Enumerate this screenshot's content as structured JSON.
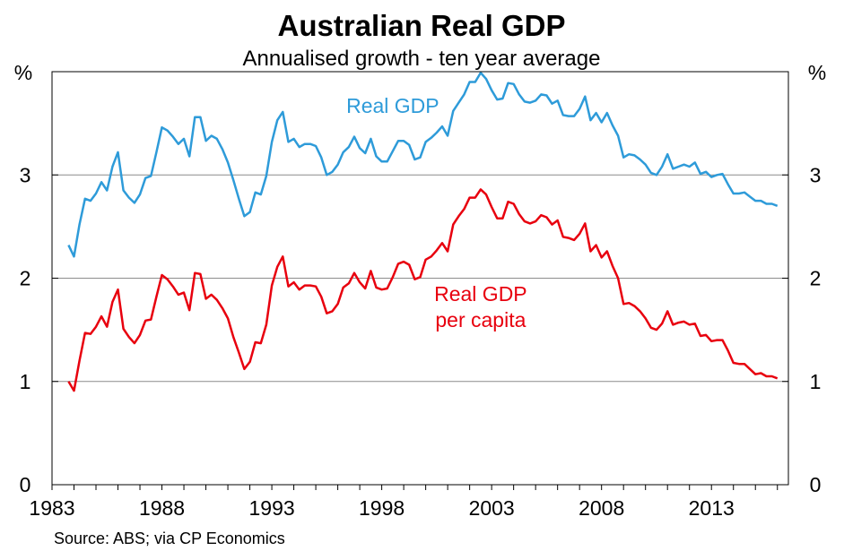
{
  "chart_data": {
    "type": "line",
    "title": "Australian Real GDP",
    "subtitle": "Annualised growth - ten year average",
    "unit_left": "%",
    "unit_right": "%",
    "xlim": [
      1983,
      2016.5
    ],
    "ylim": [
      0,
      4
    ],
    "x_ticks": [
      1983,
      1988,
      1993,
      1998,
      2003,
      2008,
      2013
    ],
    "y_ticks": [
      0,
      1,
      2,
      3
    ],
    "grid": true,
    "source": "Source: ABS; via CP Economics",
    "series": [
      {
        "name": "Real GDP",
        "color": "#2E9BD9",
        "label_lines": [
          "Real GDP"
        ],
        "points": [
          [
            1983.75,
            2.32
          ],
          [
            1984.0,
            2.21
          ],
          [
            1984.25,
            2.52
          ],
          [
            1984.5,
            2.77
          ],
          [
            1984.75,
            2.75
          ],
          [
            1985.0,
            2.82
          ],
          [
            1985.25,
            2.93
          ],
          [
            1985.5,
            2.85
          ],
          [
            1985.75,
            3.08
          ],
          [
            1986.0,
            3.22
          ],
          [
            1986.25,
            2.85
          ],
          [
            1986.5,
            2.78
          ],
          [
            1986.75,
            2.73
          ],
          [
            1987.0,
            2.81
          ],
          [
            1987.25,
            2.97
          ],
          [
            1987.5,
            2.99
          ],
          [
            1987.75,
            3.22
          ],
          [
            1988.0,
            3.46
          ],
          [
            1988.25,
            3.43
          ],
          [
            1988.5,
            3.37
          ],
          [
            1988.75,
            3.3
          ],
          [
            1989.0,
            3.35
          ],
          [
            1989.25,
            3.18
          ],
          [
            1989.5,
            3.56
          ],
          [
            1989.75,
            3.56
          ],
          [
            1990.0,
            3.33
          ],
          [
            1990.25,
            3.38
          ],
          [
            1990.5,
            3.35
          ],
          [
            1990.75,
            3.25
          ],
          [
            1991.0,
            3.12
          ],
          [
            1991.25,
            2.95
          ],
          [
            1991.5,
            2.77
          ],
          [
            1991.75,
            2.6
          ],
          [
            1992.0,
            2.64
          ],
          [
            1992.25,
            2.83
          ],
          [
            1992.5,
            2.81
          ],
          [
            1992.75,
            2.99
          ],
          [
            1993.0,
            3.32
          ],
          [
            1993.25,
            3.53
          ],
          [
            1993.5,
            3.61
          ],
          [
            1993.75,
            3.32
          ],
          [
            1994.0,
            3.35
          ],
          [
            1994.25,
            3.27
          ],
          [
            1994.5,
            3.3
          ],
          [
            1994.75,
            3.3
          ],
          [
            1995.0,
            3.28
          ],
          [
            1995.25,
            3.17
          ],
          [
            1995.5,
            3.0
          ],
          [
            1995.75,
            3.03
          ],
          [
            1996.0,
            3.1
          ],
          [
            1996.25,
            3.22
          ],
          [
            1996.5,
            3.27
          ],
          [
            1996.75,
            3.37
          ],
          [
            1997.0,
            3.26
          ],
          [
            1997.25,
            3.21
          ],
          [
            1997.5,
            3.35
          ],
          [
            1997.75,
            3.18
          ],
          [
            1998.0,
            3.13
          ],
          [
            1998.25,
            3.13
          ],
          [
            1998.5,
            3.23
          ],
          [
            1998.75,
            3.33
          ],
          [
            1999.0,
            3.33
          ],
          [
            1999.25,
            3.29
          ],
          [
            1999.5,
            3.15
          ],
          [
            1999.75,
            3.17
          ],
          [
            2000.0,
            3.32
          ],
          [
            2000.25,
            3.36
          ],
          [
            2000.5,
            3.41
          ],
          [
            2000.75,
            3.47
          ],
          [
            2001.0,
            3.38
          ],
          [
            2001.25,
            3.62
          ],
          [
            2001.5,
            3.7
          ],
          [
            2001.75,
            3.78
          ],
          [
            2002.0,
            3.9
          ],
          [
            2002.25,
            3.9
          ],
          [
            2002.5,
            3.99
          ],
          [
            2002.75,
            3.93
          ],
          [
            2003.0,
            3.82
          ],
          [
            2003.25,
            3.73
          ],
          [
            2003.5,
            3.74
          ],
          [
            2003.75,
            3.89
          ],
          [
            2004.0,
            3.88
          ],
          [
            2004.25,
            3.78
          ],
          [
            2004.5,
            3.71
          ],
          [
            2004.75,
            3.7
          ],
          [
            2005.0,
            3.72
          ],
          [
            2005.25,
            3.78
          ],
          [
            2005.5,
            3.77
          ],
          [
            2005.75,
            3.69
          ],
          [
            2006.0,
            3.72
          ],
          [
            2006.25,
            3.58
          ],
          [
            2006.5,
            3.57
          ],
          [
            2006.75,
            3.57
          ],
          [
            2007.0,
            3.64
          ],
          [
            2007.25,
            3.76
          ],
          [
            2007.5,
            3.53
          ],
          [
            2007.75,
            3.6
          ],
          [
            2008.0,
            3.51
          ],
          [
            2008.25,
            3.6
          ],
          [
            2008.5,
            3.48
          ],
          [
            2008.75,
            3.38
          ],
          [
            2009.0,
            3.17
          ],
          [
            2009.25,
            3.2
          ],
          [
            2009.5,
            3.19
          ],
          [
            2009.75,
            3.15
          ],
          [
            2010.0,
            3.1
          ],
          [
            2010.25,
            3.02
          ],
          [
            2010.5,
            3.0
          ],
          [
            2010.75,
            3.08
          ],
          [
            2011.0,
            3.2
          ],
          [
            2011.25,
            3.06
          ],
          [
            2011.5,
            3.08
          ],
          [
            2011.75,
            3.1
          ],
          [
            2012.0,
            3.08
          ],
          [
            2012.25,
            3.12
          ],
          [
            2012.5,
            3.01
          ],
          [
            2012.75,
            3.03
          ],
          [
            2013.0,
            2.98
          ],
          [
            2013.25,
            3.0
          ],
          [
            2013.5,
            3.01
          ],
          [
            2013.75,
            2.91
          ],
          [
            2014.0,
            2.82
          ],
          [
            2014.25,
            2.82
          ],
          [
            2014.5,
            2.83
          ],
          [
            2014.75,
            2.79
          ],
          [
            2015.0,
            2.75
          ],
          [
            2015.25,
            2.75
          ],
          [
            2015.5,
            2.72
          ],
          [
            2015.75,
            2.72
          ],
          [
            2016.0,
            2.7
          ]
        ]
      },
      {
        "name": "Real GDP per capita",
        "color": "#E8000E",
        "label_lines": [
          "Real GDP",
          "per capita"
        ],
        "points": [
          [
            1983.75,
            1.0
          ],
          [
            1984.0,
            0.91
          ],
          [
            1984.25,
            1.2
          ],
          [
            1984.5,
            1.47
          ],
          [
            1984.75,
            1.46
          ],
          [
            1985.0,
            1.53
          ],
          [
            1985.25,
            1.63
          ],
          [
            1985.5,
            1.53
          ],
          [
            1985.75,
            1.77
          ],
          [
            1986.0,
            1.89
          ],
          [
            1986.25,
            1.51
          ],
          [
            1986.5,
            1.43
          ],
          [
            1986.75,
            1.37
          ],
          [
            1987.0,
            1.45
          ],
          [
            1987.25,
            1.59
          ],
          [
            1987.5,
            1.6
          ],
          [
            1987.75,
            1.82
          ],
          [
            1988.0,
            2.03
          ],
          [
            1988.25,
            1.99
          ],
          [
            1988.5,
            1.92
          ],
          [
            1988.75,
            1.84
          ],
          [
            1989.0,
            1.86
          ],
          [
            1989.25,
            1.69
          ],
          [
            1989.5,
            2.05
          ],
          [
            1989.75,
            2.04
          ],
          [
            1990.0,
            1.8
          ],
          [
            1990.25,
            1.84
          ],
          [
            1990.5,
            1.79
          ],
          [
            1990.75,
            1.71
          ],
          [
            1991.0,
            1.61
          ],
          [
            1991.25,
            1.43
          ],
          [
            1991.5,
            1.28
          ],
          [
            1991.75,
            1.12
          ],
          [
            1992.0,
            1.19
          ],
          [
            1992.25,
            1.38
          ],
          [
            1992.5,
            1.37
          ],
          [
            1992.75,
            1.55
          ],
          [
            1993.0,
            1.93
          ],
          [
            1993.25,
            2.11
          ],
          [
            1993.5,
            2.21
          ],
          [
            1993.75,
            1.92
          ],
          [
            1994.0,
            1.96
          ],
          [
            1994.25,
            1.89
          ],
          [
            1994.5,
            1.93
          ],
          [
            1994.75,
            1.93
          ],
          [
            1995.0,
            1.92
          ],
          [
            1995.25,
            1.82
          ],
          [
            1995.5,
            1.66
          ],
          [
            1995.75,
            1.68
          ],
          [
            1996.0,
            1.75
          ],
          [
            1996.25,
            1.91
          ],
          [
            1996.5,
            1.95
          ],
          [
            1996.75,
            2.05
          ],
          [
            1997.0,
            1.96
          ],
          [
            1997.25,
            1.9
          ],
          [
            1997.5,
            2.07
          ],
          [
            1997.75,
            1.91
          ],
          [
            1998.0,
            1.89
          ],
          [
            1998.25,
            1.9
          ],
          [
            1998.5,
            2.01
          ],
          [
            1998.75,
            2.14
          ],
          [
            1999.0,
            2.16
          ],
          [
            1999.25,
            2.13
          ],
          [
            1999.5,
            1.99
          ],
          [
            1999.75,
            2.01
          ],
          [
            2000.0,
            2.18
          ],
          [
            2000.25,
            2.21
          ],
          [
            2000.5,
            2.27
          ],
          [
            2000.75,
            2.34
          ],
          [
            2001.0,
            2.26
          ],
          [
            2001.25,
            2.52
          ],
          [
            2001.5,
            2.6
          ],
          [
            2001.75,
            2.67
          ],
          [
            2002.0,
            2.78
          ],
          [
            2002.25,
            2.78
          ],
          [
            2002.5,
            2.86
          ],
          [
            2002.75,
            2.81
          ],
          [
            2003.0,
            2.69
          ],
          [
            2003.25,
            2.58
          ],
          [
            2003.5,
            2.58
          ],
          [
            2003.75,
            2.74
          ],
          [
            2004.0,
            2.72
          ],
          [
            2004.25,
            2.62
          ],
          [
            2004.5,
            2.55
          ],
          [
            2004.75,
            2.53
          ],
          [
            2005.0,
            2.55
          ],
          [
            2005.25,
            2.61
          ],
          [
            2005.5,
            2.59
          ],
          [
            2005.75,
            2.52
          ],
          [
            2006.0,
            2.56
          ],
          [
            2006.25,
            2.4
          ],
          [
            2006.5,
            2.39
          ],
          [
            2006.75,
            2.37
          ],
          [
            2007.0,
            2.43
          ],
          [
            2007.25,
            2.53
          ],
          [
            2007.5,
            2.26
          ],
          [
            2007.75,
            2.32
          ],
          [
            2008.0,
            2.2
          ],
          [
            2008.25,
            2.26
          ],
          [
            2008.5,
            2.12
          ],
          [
            2008.75,
            2.0
          ],
          [
            2009.0,
            1.75
          ],
          [
            2009.25,
            1.76
          ],
          [
            2009.5,
            1.73
          ],
          [
            2009.75,
            1.68
          ],
          [
            2010.0,
            1.61
          ],
          [
            2010.25,
            1.52
          ],
          [
            2010.5,
            1.5
          ],
          [
            2010.75,
            1.56
          ],
          [
            2011.0,
            1.68
          ],
          [
            2011.25,
            1.55
          ],
          [
            2011.5,
            1.57
          ],
          [
            2011.75,
            1.58
          ],
          [
            2012.0,
            1.55
          ],
          [
            2012.25,
            1.56
          ],
          [
            2012.5,
            1.44
          ],
          [
            2012.75,
            1.45
          ],
          [
            2013.0,
            1.39
          ],
          [
            2013.25,
            1.4
          ],
          [
            2013.5,
            1.4
          ],
          [
            2013.75,
            1.3
          ],
          [
            2014.0,
            1.18
          ],
          [
            2014.25,
            1.17
          ],
          [
            2014.5,
            1.17
          ],
          [
            2014.75,
            1.12
          ],
          [
            2015.0,
            1.07
          ],
          [
            2015.25,
            1.08
          ],
          [
            2015.5,
            1.05
          ],
          [
            2015.75,
            1.05
          ],
          [
            2016.0,
            1.03
          ]
        ]
      }
    ]
  }
}
